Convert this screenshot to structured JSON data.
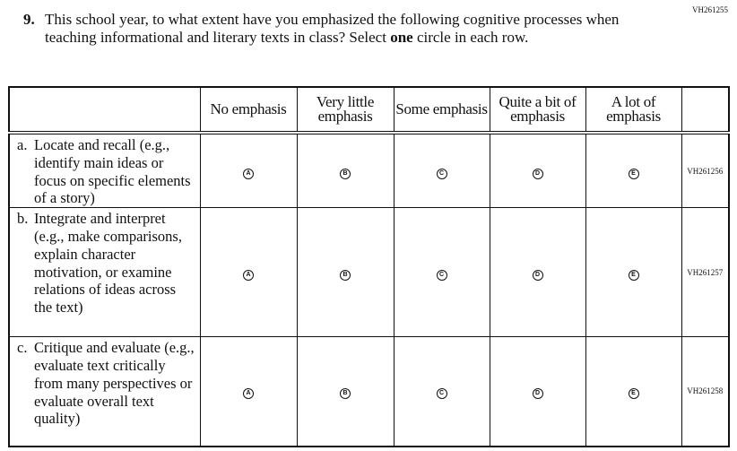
{
  "question": {
    "id": "VH261255",
    "number": "9.",
    "text_before": "This school year, to what extent have you emphasized the following cognitive processes when teaching informational and literary texts in class? Select ",
    "text_emph": "one",
    "text_after": " circle in each row."
  },
  "columns": [
    {
      "label": "No emphasis",
      "letter": "A"
    },
    {
      "label": "Very little emphasis",
      "letter": "B"
    },
    {
      "label": "Some emphasis",
      "letter": "C"
    },
    {
      "label": "Quite a bit of emphasis",
      "letter": "D"
    },
    {
      "label": "A lot of emphasis",
      "letter": "E"
    }
  ],
  "rows": [
    {
      "letter": "a.",
      "text": "Locate and recall (e.g., identify main ideas or focus on specific elements of a story)",
      "code": "VH261256"
    },
    {
      "letter": "b.",
      "text": "Integrate and interpret (e.g., make comparisons, explain character motivation, or examine relations of ideas across the text)",
      "code": "VH261257"
    },
    {
      "letter": "c.",
      "text": "Critique and evaluate (e.g., evaluate text critically from many perspectives or evaluate overall text quality)",
      "code": "VH261258"
    }
  ]
}
